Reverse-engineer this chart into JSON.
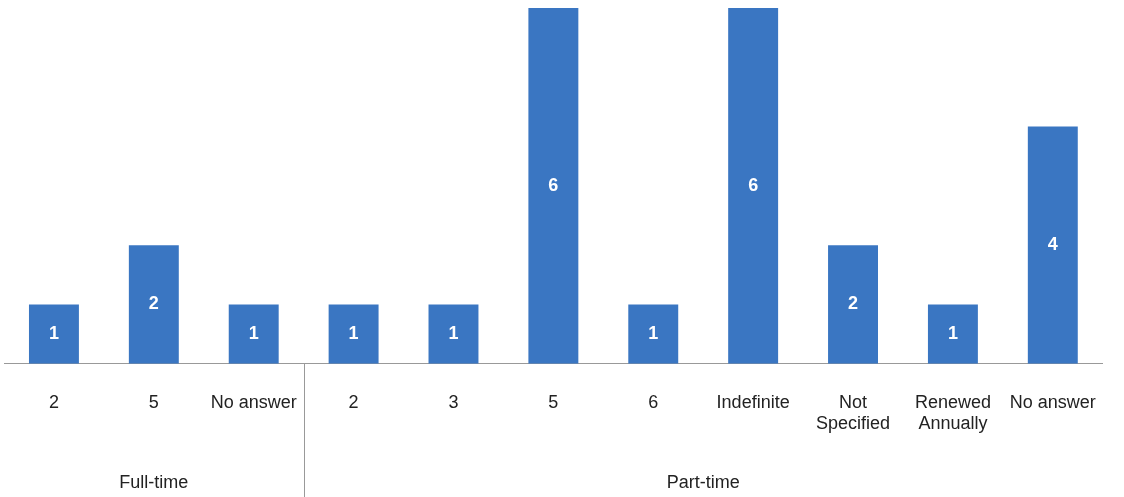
{
  "chart_data": {
    "type": "bar",
    "categories": [
      "2",
      "5",
      "No answer",
      "2",
      "3",
      "5",
      "6",
      "Indefinite",
      "Not Specified",
      "Renewed Annually",
      "No answer"
    ],
    "values": [
      1,
      2,
      1,
      1,
      1,
      6,
      1,
      6,
      2,
      1,
      4
    ],
    "color": "#3a76c2",
    "data_labels": true,
    "grid": false,
    "legend": false,
    "annotations": [
      "Full-time",
      "Part-time"
    ]
  }
}
